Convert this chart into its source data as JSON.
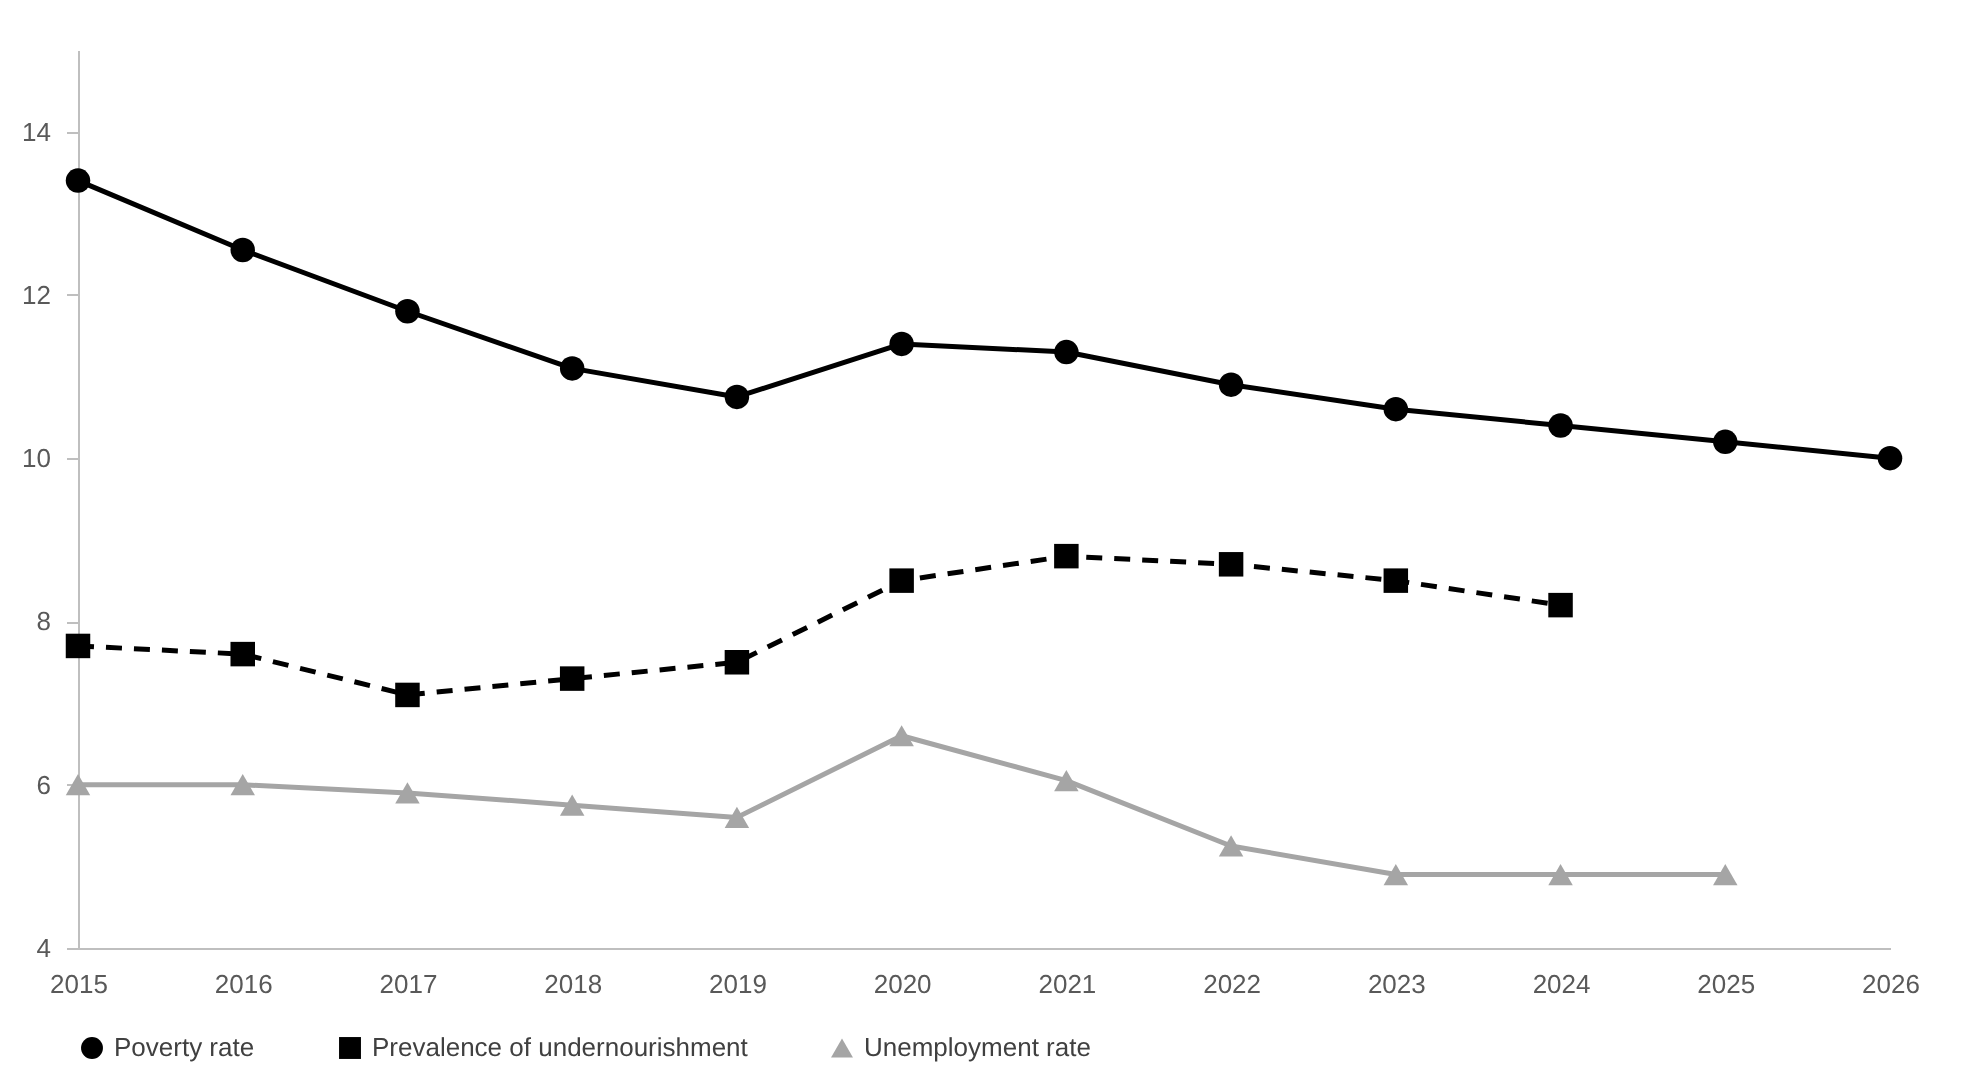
{
  "chart_data": {
    "type": "line",
    "categories": [
      "2015",
      "2016",
      "2017",
      "2018",
      "2019",
      "2020",
      "2021",
      "2022",
      "2023",
      "2024",
      "2025",
      "2026"
    ],
    "ylim": [
      4,
      15
    ],
    "yticks": [
      4,
      6,
      8,
      10,
      12,
      14
    ],
    "grid": false,
    "legend": "bottom",
    "series": [
      {
        "name": "Poverty rate",
        "color": "#000000",
        "marker": "circle",
        "line_style": "solid",
        "values": [
          13.4,
          12.55,
          11.8,
          11.1,
          10.75,
          11.4,
          11.3,
          10.9,
          10.6,
          10.4,
          10.2,
          10.0
        ]
      },
      {
        "name": "Prevalence of undernourishment",
        "color": "#000000",
        "marker": "square",
        "line_style": "dashed",
        "values": [
          7.7,
          7.6,
          7.1,
          7.3,
          7.5,
          8.5,
          8.8,
          8.7,
          8.5,
          8.2,
          null,
          null
        ]
      },
      {
        "name": "Unemployment rate",
        "color": "#a5a5a5",
        "marker": "triangle",
        "line_style": "solid",
        "values": [
          6.0,
          6.0,
          5.9,
          5.75,
          5.6,
          6.6,
          6.05,
          5.25,
          4.9,
          4.9,
          4.9,
          null
        ]
      }
    ]
  }
}
